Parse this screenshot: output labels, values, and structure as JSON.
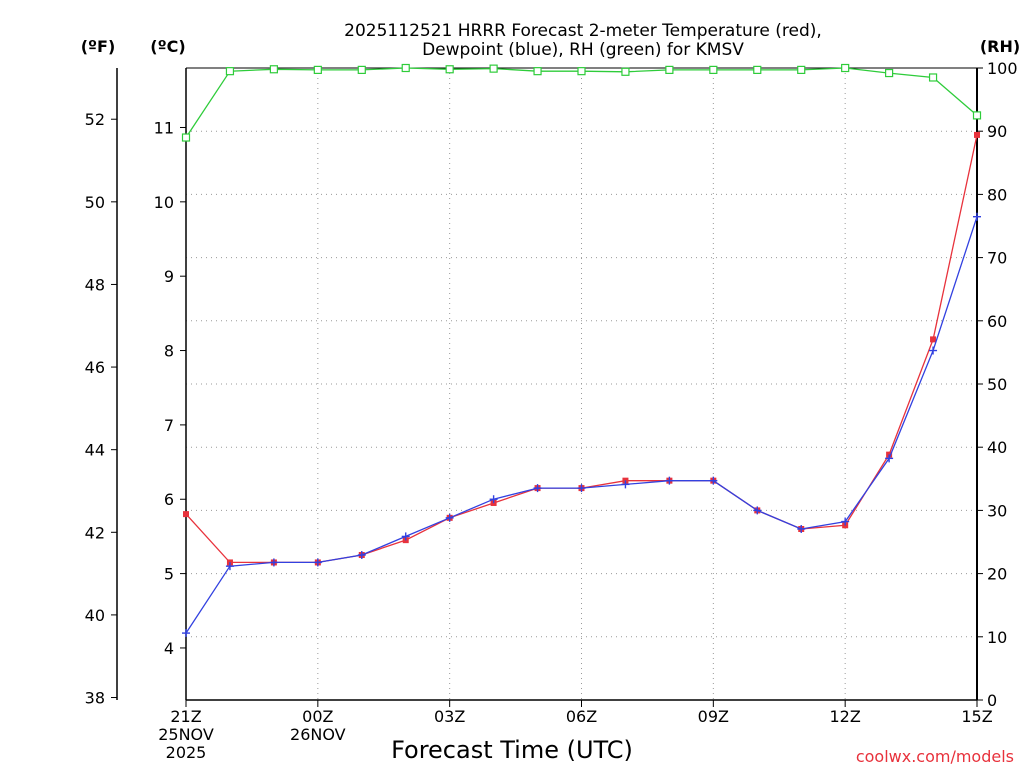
{
  "chart_data": {
    "type": "line",
    "title_line1": "2025112521 HRRR Forecast 2-meter Temperature (red),",
    "title_line2": "Dewpoint (blue), RH (green) for KMSV",
    "xlabel": "Forecast Time (UTC)",
    "credit": "coolwx.com/models",
    "units": {
      "fahrenheit": "(ºF)",
      "celsius": "(ºC)",
      "rh": "(RH)"
    },
    "x_hours": [
      0,
      1,
      2,
      3,
      4,
      5,
      6,
      7,
      8,
      9,
      10,
      11,
      12,
      13,
      14,
      15,
      16,
      17,
      18
    ],
    "x_ticks": [
      {
        "hour": 0,
        "lines": [
          "21Z",
          "25NOV",
          "2025"
        ]
      },
      {
        "hour": 3,
        "lines": [
          "00Z",
          "26NOV"
        ]
      },
      {
        "hour": 6,
        "lines": [
          "03Z"
        ]
      },
      {
        "hour": 9,
        "lines": [
          "06Z"
        ]
      },
      {
        "hour": 12,
        "lines": [
          "09Z"
        ]
      },
      {
        "hour": 15,
        "lines": [
          "12Z"
        ]
      },
      {
        "hour": 18,
        "lines": [
          "15Z"
        ]
      }
    ],
    "y_celsius_range": [
      3.3,
      11.8
    ],
    "y_celsius_ticks": [
      4,
      5,
      6,
      7,
      8,
      9,
      10,
      11
    ],
    "y_fahrenheit_ticks": [
      38,
      40,
      42,
      44,
      46,
      48,
      50,
      52
    ],
    "y_rh_range": [
      0,
      100
    ],
    "y_rh_ticks": [
      0,
      10,
      20,
      30,
      40,
      50,
      60,
      70,
      80,
      90,
      100
    ],
    "series": [
      {
        "name": "Temperature",
        "axis": "celsius",
        "color": "#e8323c",
        "values": [
          5.8,
          5.15,
          5.15,
          5.15,
          5.25,
          5.45,
          5.75,
          5.95,
          6.15,
          6.15,
          6.25,
          6.25,
          6.25,
          5.85,
          5.6,
          5.65,
          6.6,
          8.15,
          10.9
        ]
      },
      {
        "name": "Dewpoint",
        "axis": "celsius",
        "color": "#3241e0",
        "values": [
          4.2,
          5.1,
          5.15,
          5.15,
          5.25,
          5.5,
          5.75,
          6.0,
          6.15,
          6.15,
          6.2,
          6.25,
          6.25,
          5.85,
          5.6,
          5.7,
          6.55,
          8.0,
          9.8
        ]
      },
      {
        "name": "RH",
        "axis": "rh",
        "color": "#2ecc3a",
        "values": [
          89,
          99.5,
          99.8,
          99.7,
          99.7,
          100,
          99.8,
          99.9,
          99.5,
          99.5,
          99.4,
          99.7,
          99.7,
          99.7,
          99.7,
          100,
          99.2,
          98.5,
          92.5
        ]
      }
    ]
  }
}
